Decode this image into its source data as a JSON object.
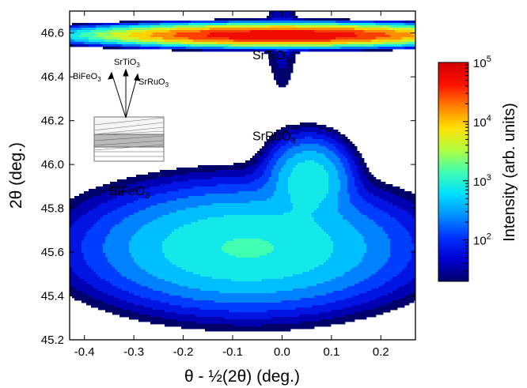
{
  "chart_data": {
    "type": "heatmap",
    "subtype": "reciprocal space map (filled contour)",
    "xlabel_parts": [
      "θ - ½(2θ) (deg.)"
    ],
    "ylabel_parts": [
      "2θ (deg.)"
    ],
    "xlim": [
      -0.43,
      0.27
    ],
    "ylim": [
      45.2,
      46.7
    ],
    "xticks": [
      -0.4,
      -0.3,
      -0.2,
      -0.1,
      0.0,
      0.1,
      0.2
    ],
    "xtick_labels": [
      "-0.4",
      "-0.3",
      "-0.2",
      "-0.1",
      "0.0",
      "0.1",
      "0.2"
    ],
    "yticks": [
      45.2,
      45.4,
      45.6,
      45.8,
      46.0,
      46.2,
      46.4,
      46.6
    ],
    "ytick_labels": [
      "45.2",
      "45.4",
      "45.6",
      "45.8",
      "46.0",
      "46.2",
      "46.4",
      "46.6"
    ],
    "peaks": [
      {
        "name": "SrTiO3",
        "label": "SrTiO",
        "sub": "3",
        "x": 0.0,
        "y": 46.59,
        "sigma_x": 0.14,
        "sigma_y": 0.018,
        "intensity": 100000,
        "label_x": -0.06,
        "label_y": 46.48
      },
      {
        "name": "SrRuO3",
        "label": "SrRuO",
        "sub": "3",
        "x": 0.055,
        "y": 45.93,
        "sigma_x": 0.04,
        "sigma_y": 0.09,
        "intensity": 1200,
        "label_x": -0.06,
        "label_y": 46.11
      },
      {
        "name": "BiFeO3",
        "label": "BiFeO",
        "sub": "3",
        "x": -0.07,
        "y": 45.62,
        "sigma_x": 0.15,
        "sigma_y": 0.13,
        "intensity": 1500,
        "label_x": -0.35,
        "label_y": 45.86
      }
    ],
    "colorbar": {
      "title": "Intensity (arb. units)",
      "scale": "log",
      "range": [
        20,
        100000
      ],
      "ticks": [
        {
          "value": 100,
          "base": "10",
          "exp": "2"
        },
        {
          "value": 1000,
          "base": "10",
          "exp": "3"
        },
        {
          "value": 10000,
          "base": "10",
          "exp": "4"
        },
        {
          "value": 100000,
          "base": "10",
          "exp": "5"
        }
      ],
      "colormap": [
        "#00006b",
        "#0000d0",
        "#0030ff",
        "#0090ff",
        "#00e0ff",
        "#40ffb0",
        "#b0ff40",
        "#ffe000",
        "#ff8000",
        "#ff1000",
        "#d00000"
      ]
    },
    "inset": {
      "labels": [
        {
          "label": "BiFeO",
          "sub": "3"
        },
        {
          "label": "SrTiO",
          "sub": "3"
        },
        {
          "label": "SrRuO",
          "sub": "3"
        }
      ]
    },
    "grid": false
  }
}
